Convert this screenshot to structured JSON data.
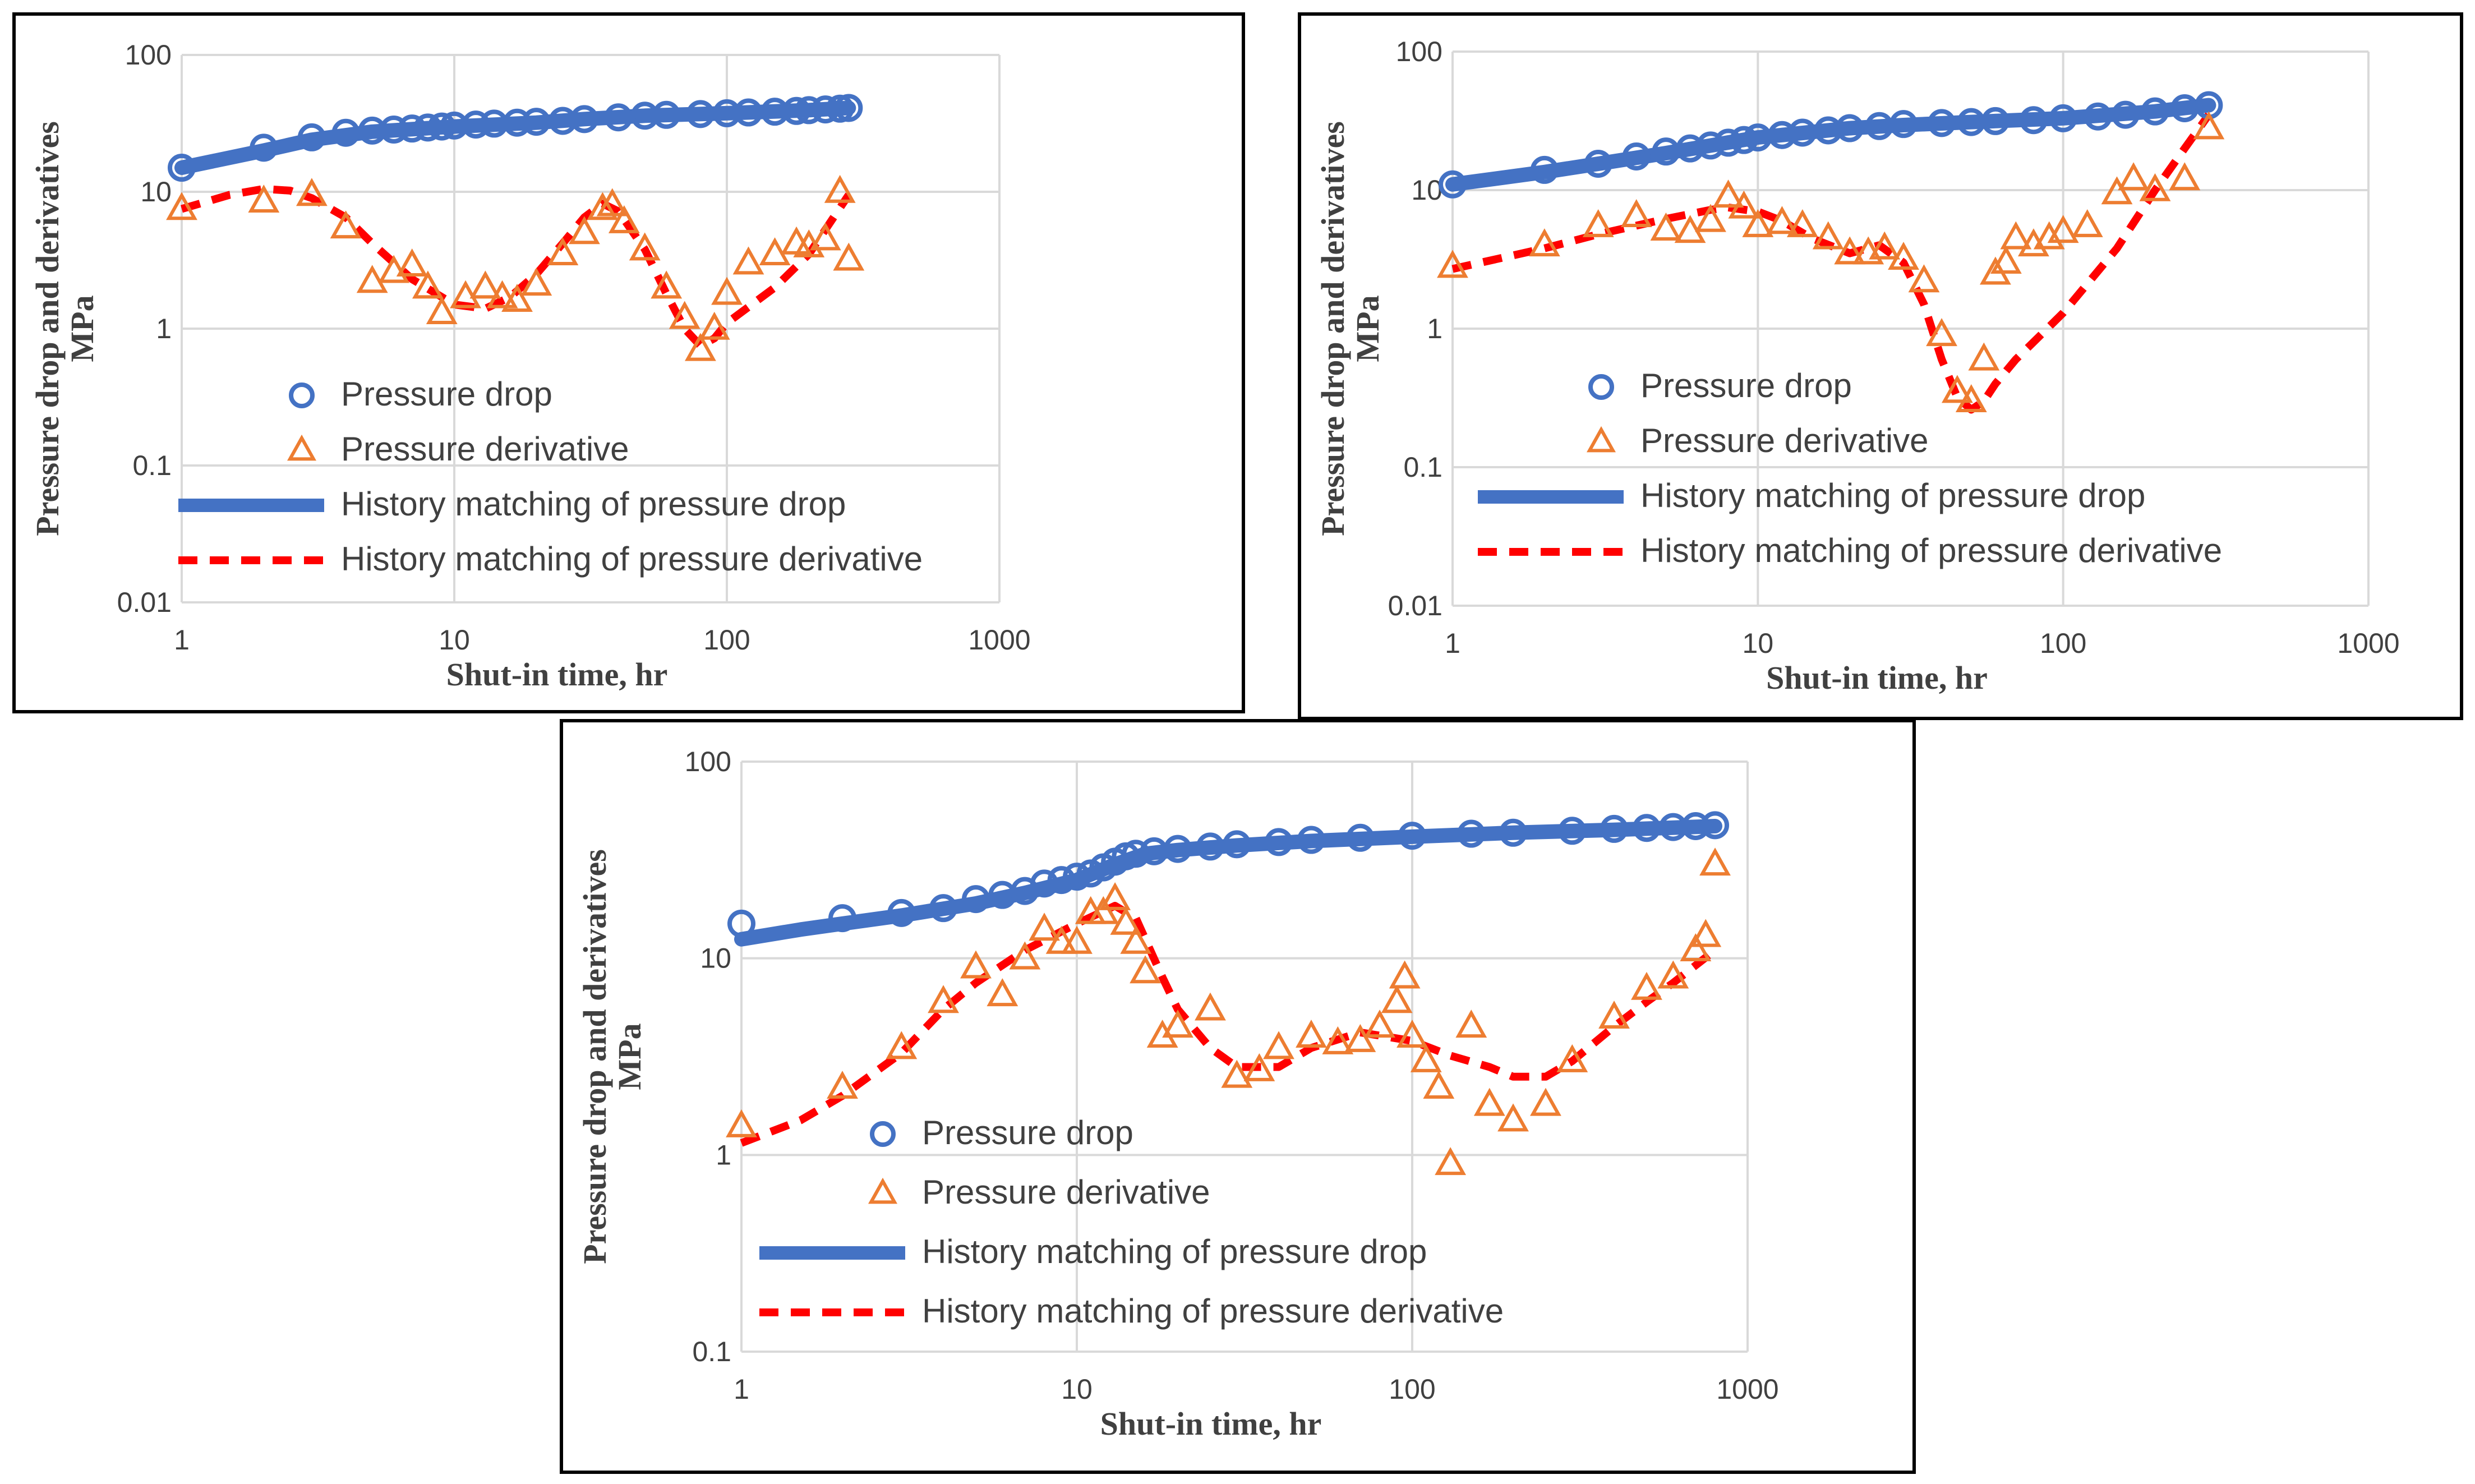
{
  "chart_data": [
    {
      "type": "scatter",
      "title": "",
      "xscale": "log",
      "yscale": "log",
      "xlim": [
        1,
        1000
      ],
      "ylim": [
        0.01,
        100
      ],
      "xticks": [
        "1",
        "10",
        "100",
        "1000"
      ],
      "yticks": [
        "0.01",
        "0.1",
        "1",
        "10",
        "100"
      ],
      "xlabel": "Shut-in time, hr",
      "ylabel": [
        "Pressure drop and derivatives",
        "MPa"
      ],
      "grid": true,
      "legend_position": "center",
      "legend": [
        "Pressure drop",
        "Pressure derivative",
        "History matching of pressure drop",
        "History matching of pressure derivative"
      ],
      "series": [
        {
          "name": "Pressure drop",
          "marker": "circle",
          "color": "#4472C4",
          "x": [
            1,
            2,
            3,
            4,
            5,
            6,
            7,
            8,
            9,
            10,
            12,
            14,
            17,
            20,
            25,
            30,
            40,
            50,
            60,
            80,
            100,
            120,
            150,
            180,
            200,
            230,
            260,
            280
          ],
          "y": [
            15,
            21,
            25,
            27,
            28,
            28.5,
            29,
            29.5,
            30,
            30.5,
            31,
            31.5,
            32,
            32.5,
            33,
            34,
            35,
            36,
            36.5,
            37,
            37.5,
            38,
            38.5,
            39,
            39.5,
            40,
            40.5,
            41
          ]
        },
        {
          "name": "Pressure derivative",
          "marker": "triangle",
          "color": "#ED7D31",
          "x": [
            1,
            2,
            3,
            4,
            5,
            6,
            7,
            8,
            9,
            11,
            13,
            15,
            17,
            20,
            25,
            30,
            35,
            38,
            42,
            50,
            60,
            70,
            80,
            90,
            100,
            120,
            150,
            180,
            200,
            230,
            260,
            280
          ],
          "y": [
            7.5,
            8.5,
            9.5,
            5.5,
            2.2,
            2.6,
            2.9,
            2,
            1.3,
            1.7,
            2,
            1.7,
            1.6,
            2.1,
            3.5,
            5,
            7.5,
            8,
            6,
            3.8,
            2,
            1.2,
            0.7,
            1,
            1.8,
            3,
            3.5,
            4.2,
            4,
            4.5,
            10,
            3.2
          ]
        },
        {
          "name": "History matching of pressure drop",
          "line": "solid",
          "color": "#4472C4",
          "x": [
            1,
            2,
            3,
            5,
            10,
            20,
            30,
            50,
            100,
            200,
            280
          ],
          "y": [
            15,
            20,
            24,
            27.5,
            30,
            32,
            34,
            36,
            37.5,
            39.5,
            41
          ]
        },
        {
          "name": "History matching of pressure derivative",
          "line": "dashed",
          "color": "#FF0000",
          "x": [
            1,
            1.5,
            2,
            2.5,
            3,
            4,
            5,
            7,
            10,
            13,
            16,
            20,
            25,
            30,
            35,
            40,
            50,
            60,
            70,
            80,
            90,
            100,
            150,
            200,
            280
          ],
          "y": [
            7.5,
            9.5,
            10.5,
            10.2,
            9,
            6.5,
            4.2,
            2.3,
            1.5,
            1.4,
            1.7,
            2.5,
            4.2,
            6.5,
            8.2,
            7.2,
            3.8,
            1.8,
            1.0,
            0.75,
            0.85,
            1.1,
            2,
            3.5,
            9.5
          ]
        }
      ]
    },
    {
      "type": "scatter",
      "title": "",
      "xscale": "log",
      "yscale": "log",
      "xlim": [
        1,
        1000
      ],
      "ylim": [
        0.01,
        100
      ],
      "xticks": [
        "1",
        "10",
        "100",
        "1000"
      ],
      "yticks": [
        "0.01",
        "0.1",
        "1",
        "10",
        "100"
      ],
      "xlabel": "Shut-in time, hr",
      "ylabel": [
        "Pressure drop and derivatives",
        "MPa"
      ],
      "grid": true,
      "legend_position": "center",
      "legend": [
        "Pressure drop",
        "Pressure derivative",
        "History matching of pressure drop",
        "History matching of pressure derivative"
      ],
      "series": [
        {
          "name": "Pressure drop",
          "marker": "circle",
          "color": "#4472C4",
          "x": [
            1,
            2,
            3,
            4,
            5,
            6,
            7,
            8,
            9,
            10,
            12,
            14,
            17,
            20,
            25,
            30,
            40,
            50,
            60,
            80,
            100,
            130,
            160,
            200,
            250,
            300
          ],
          "y": [
            11,
            14,
            15.5,
            17.5,
            19,
            20,
            21,
            22,
            23,
            24,
            25,
            26,
            27,
            28,
            29,
            30,
            30.5,
            31,
            31.5,
            32,
            33,
            34,
            35,
            37,
            39,
            41
          ]
        },
        {
          "name": "Pressure derivative",
          "marker": "triangle",
          "color": "#ED7D31",
          "x": [
            1,
            2,
            3,
            4,
            5,
            6,
            7,
            8,
            9,
            10,
            12,
            14,
            17,
            20,
            23,
            26,
            30,
            35,
            40,
            45,
            50,
            55,
            60,
            65,
            70,
            80,
            90,
            100,
            120,
            150,
            170,
            200,
            250,
            300
          ],
          "y": [
            2.8,
            4,
            5.5,
            6.5,
            5.2,
            5,
            6,
            9,
            7.5,
            5.5,
            5.8,
            5.5,
            4.5,
            3.5,
            3.5,
            3.8,
            3.2,
            2.2,
            0.9,
            0.35,
            0.3,
            0.6,
            2.5,
            3,
            4.5,
            4,
            4.5,
            5,
            5.5,
            9.5,
            12,
            10,
            12,
            28
          ]
        },
        {
          "name": "History matching of pressure drop",
          "line": "solid",
          "color": "#4472C4",
          "x": [
            1,
            2,
            3,
            5,
            10,
            20,
            30,
            50,
            100,
            200,
            300
          ],
          "y": [
            11,
            13.5,
            15.5,
            18.5,
            24,
            28,
            29.5,
            31,
            33,
            37,
            41
          ]
        },
        {
          "name": "History matching of pressure derivative",
          "line": "dashed",
          "color": "#FF0000",
          "x": [
            1,
            2,
            3,
            5,
            7,
            8,
            10,
            12,
            15,
            20,
            25,
            30,
            35,
            40,
            45,
            50,
            55,
            60,
            70,
            80,
            100,
            150,
            200,
            250,
            300
          ],
          "y": [
            2.7,
            3.8,
            4.8,
            6.2,
            7.2,
            7.5,
            7,
            6,
            4.5,
            3.5,
            4,
            3,
            1.5,
            0.6,
            0.32,
            0.26,
            0.3,
            0.4,
            0.6,
            0.8,
            1.3,
            3.8,
            10,
            20,
            35
          ]
        }
      ]
    },
    {
      "type": "scatter",
      "title": "",
      "xscale": "log",
      "yscale": "log",
      "xlim": [
        1,
        1000
      ],
      "ylim": [
        0.1,
        100
      ],
      "xticks": [
        "1",
        "10",
        "100",
        "1000"
      ],
      "yticks": [
        "0.1",
        "1",
        "10",
        "100"
      ],
      "xlabel": "Shut-in time, hr",
      "ylabel": [
        "Pressure drop and derivatives",
        "MPa"
      ],
      "grid": true,
      "legend_position": "center",
      "legend": [
        "Pressure drop",
        "Pressure derivative",
        "History matching of pressure drop",
        "History matching of pressure derivative"
      ],
      "series": [
        {
          "name": "Pressure drop",
          "marker": "circle",
          "color": "#4472C4",
          "x": [
            1,
            2,
            3,
            4,
            5,
            6,
            7,
            8,
            9,
            10,
            11,
            12,
            13,
            14,
            15,
            17,
            20,
            25,
            30,
            40,
            50,
            70,
            100,
            150,
            200,
            300,
            400,
            500,
            600,
            700,
            800
          ],
          "y": [
            15,
            16,
            17,
            18,
            20,
            21,
            22,
            24,
            25,
            26,
            27,
            29,
            31,
            33,
            34,
            35,
            36,
            37,
            38,
            39,
            40,
            41,
            42,
            43,
            43.5,
            44.5,
            45.5,
            46,
            46.5,
            47,
            47.5
          ]
        },
        {
          "name": "Pressure derivative",
          "marker": "triangle",
          "color": "#ED7D31",
          "x": [
            1,
            2,
            3,
            4,
            5,
            6,
            7,
            8,
            9,
            10,
            11,
            12,
            13,
            14,
            15,
            16,
            18,
            20,
            25,
            30,
            35,
            40,
            50,
            60,
            70,
            80,
            90,
            95,
            100,
            110,
            120,
            130,
            150,
            170,
            200,
            250,
            300,
            400,
            500,
            600,
            700,
            750,
            800
          ],
          "y": [
            1.4,
            2.2,
            3.5,
            6,
            9,
            6.5,
            10,
            14,
            12,
            12,
            17,
            17,
            20,
            15,
            12,
            8.5,
            4,
            4.5,
            5.5,
            2.5,
            2.7,
            3.5,
            4,
            3.7,
            3.8,
            4.5,
            6,
            8,
            4,
            3,
            2.2,
            0.9,
            4.5,
            1.8,
            1.5,
            1.8,
            3,
            5,
            7,
            8,
            11,
            13,
            30
          ]
        },
        {
          "name": "History matching of pressure drop",
          "line": "solid",
          "color": "#4472C4",
          "x": [
            1,
            1.5,
            2,
            3,
            5,
            7,
            10,
            13,
            16,
            20,
            30,
            50,
            100,
            200,
            400,
            800
          ],
          "y": [
            12.5,
            14,
            15,
            16.5,
            19,
            21.5,
            25,
            30,
            34,
            35.5,
            37.5,
            39.5,
            41.5,
            43.5,
            45,
            47
          ]
        },
        {
          "name": "History matching of pressure derivative",
          "line": "dashed",
          "color": "#FF0000",
          "x": [
            1,
            1.5,
            2,
            3,
            4,
            5,
            7,
            10,
            13,
            15,
            18,
            20,
            25,
            30,
            40,
            50,
            70,
            100,
            130,
            170,
            200,
            250,
            300,
            400,
            500,
            600,
            800
          ],
          "y": [
            1.15,
            1.5,
            2,
            3.3,
            5.5,
            7.5,
            11,
            15,
            18.5,
            16,
            8,
            5.5,
            3.5,
            2.8,
            2.8,
            3.5,
            4.2,
            3.8,
            3.2,
            2.8,
            2.5,
            2.5,
            3,
            4.5,
            6,
            7.5,
            11
          ]
        }
      ]
    }
  ]
}
